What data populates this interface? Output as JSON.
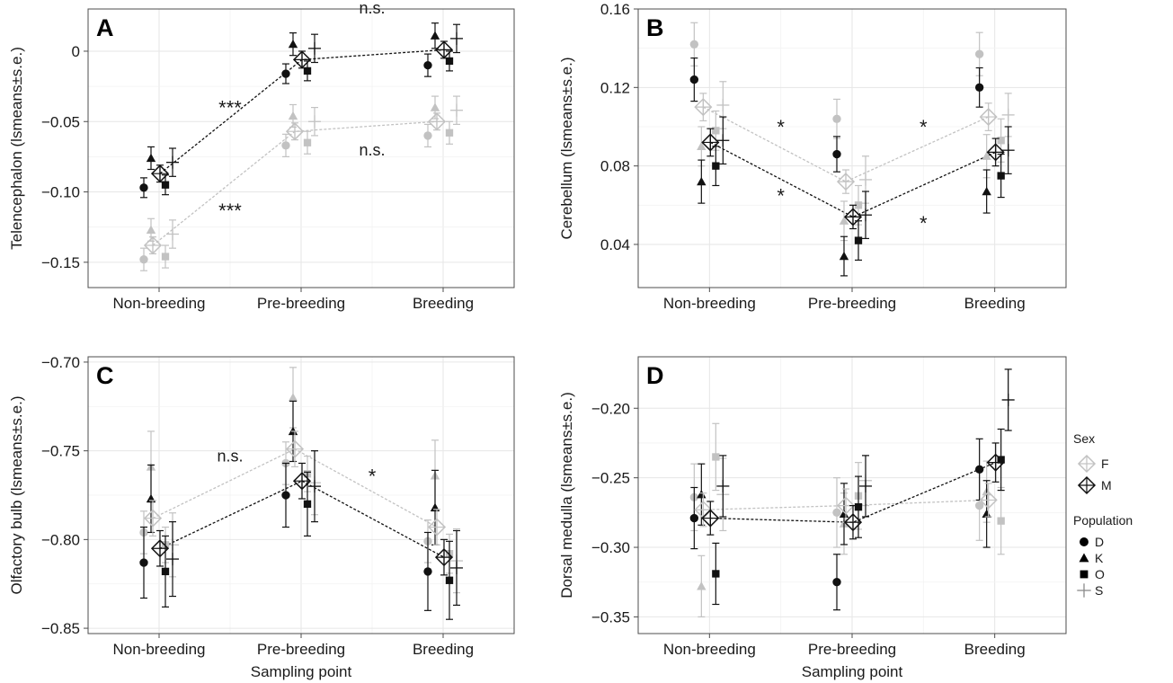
{
  "figure": {
    "colors": {
      "female": "#c2c2c2",
      "male": "#111111",
      "grid": "#e6e6e6",
      "frame": "#4d4d4d",
      "text": "#1a1a1a"
    },
    "x_title": "Sampling point",
    "legend": {
      "sex_title": "Sex",
      "sex_entries": [
        {
          "label": "F",
          "color": "#c2c2c2",
          "shape": "diamond"
        },
        {
          "label": "M",
          "color": "#111111",
          "shape": "diamond"
        }
      ],
      "pop_title": "Population",
      "pop_entries": [
        {
          "label": "D",
          "shape": "circle"
        },
        {
          "label": "K",
          "shape": "triangle"
        },
        {
          "label": "O",
          "shape": "square"
        },
        {
          "label": "S",
          "shape": "cross"
        }
      ]
    }
  },
  "chart_data": [
    {
      "type": "scatter",
      "panel": "A",
      "xlabel": "",
      "ylabel": "Telencephalon (lsmeans±s.e.)",
      "categories": [
        "Non-breeding",
        "Pre-breeding",
        "Breeding"
      ],
      "ylim": [
        -0.168,
        0.03
      ],
      "yticks": [
        0,
        -0.05,
        -0.1,
        -0.15
      ],
      "ytick_labels": [
        "0",
        "−0.05",
        "−0.10",
        "−0.15"
      ],
      "show_xlabel": false,
      "series": [
        {
          "sex": "F",
          "population": "D",
          "values": [
            -0.148,
            -0.067,
            -0.06
          ],
          "se": [
            0.008,
            0.008,
            0.008
          ]
        },
        {
          "sex": "F",
          "population": "K",
          "values": [
            -0.127,
            -0.046,
            -0.04
          ],
          "se": [
            0.008,
            0.008,
            0.008
          ]
        },
        {
          "sex": "F",
          "population": "O",
          "values": [
            -0.146,
            -0.065,
            -0.058
          ],
          "se": [
            0.008,
            0.008,
            0.008
          ]
        },
        {
          "sex": "F",
          "population": "S",
          "values": [
            -0.13,
            -0.05,
            -0.042
          ],
          "se": [
            0.01,
            0.01,
            0.01
          ]
        },
        {
          "sex": "M",
          "population": "D",
          "values": [
            -0.097,
            -0.016,
            -0.01
          ],
          "se": [
            0.007,
            0.007,
            0.008
          ]
        },
        {
          "sex": "M",
          "population": "K",
          "values": [
            -0.076,
            0.005,
            0.011
          ],
          "se": [
            0.008,
            0.008,
            0.009
          ]
        },
        {
          "sex": "M",
          "population": "O",
          "values": [
            -0.095,
            -0.014,
            -0.007
          ],
          "se": [
            0.007,
            0.007,
            0.007
          ]
        },
        {
          "sex": "M",
          "population": "S",
          "values": [
            -0.079,
            0.002,
            0.009
          ],
          "se": [
            0.01,
            0.01,
            0.01
          ]
        }
      ],
      "means": [
        {
          "sex": "F",
          "values": [
            -0.138,
            -0.057,
            -0.05
          ],
          "se": [
            0.006,
            0.006,
            0.006
          ]
        },
        {
          "sex": "M",
          "values": [
            -0.087,
            -0.006,
            0.001
          ],
          "se": [
            0.006,
            0.006,
            0.006
          ]
        }
      ],
      "annotations": [
        {
          "text": "***",
          "x": 0.5,
          "y": -0.04
        },
        {
          "text": "***",
          "x": 0.5,
          "y": -0.113
        },
        {
          "text": "n.s.",
          "x": 1.5,
          "y": 0.032
        },
        {
          "text": "n.s.",
          "x": 1.5,
          "y": -0.069
        }
      ]
    },
    {
      "type": "scatter",
      "panel": "B",
      "xlabel": "",
      "ylabel": "Cerebellum (lsmeans±s.e.)",
      "categories": [
        "Non-breeding",
        "Pre-breeding",
        "Breeding"
      ],
      "ylim": [
        0.018,
        0.16
      ],
      "yticks": [
        0.04,
        0.08,
        0.12,
        0.16
      ],
      "ytick_labels": [
        "0.04",
        "0.08",
        "0.12",
        "0.16"
      ],
      "show_xlabel": false,
      "series": [
        {
          "sex": "F",
          "population": "D",
          "values": [
            0.142,
            0.104,
            0.137
          ],
          "se": [
            0.011,
            0.01,
            0.011
          ]
        },
        {
          "sex": "F",
          "population": "K",
          "values": [
            0.09,
            0.052,
            0.085
          ],
          "se": [
            0.01,
            0.01,
            0.011
          ]
        },
        {
          "sex": "F",
          "population": "O",
          "values": [
            0.098,
            0.06,
            0.093
          ],
          "se": [
            0.01,
            0.01,
            0.011
          ]
        },
        {
          "sex": "F",
          "population": "S",
          "values": [
            0.111,
            0.073,
            0.106
          ],
          "se": [
            0.012,
            0.012,
            0.011
          ]
        },
        {
          "sex": "M",
          "population": "D",
          "values": [
            0.124,
            0.086,
            0.12
          ],
          "se": [
            0.011,
            0.009,
            0.01
          ]
        },
        {
          "sex": "M",
          "population": "K",
          "values": [
            0.072,
            0.034,
            0.067
          ],
          "se": [
            0.011,
            0.01,
            0.011
          ]
        },
        {
          "sex": "M",
          "population": "O",
          "values": [
            0.08,
            0.042,
            0.075
          ],
          "se": [
            0.01,
            0.01,
            0.011
          ]
        },
        {
          "sex": "M",
          "population": "S",
          "values": [
            0.093,
            0.055,
            0.088
          ],
          "se": [
            0.012,
            0.012,
            0.012
          ]
        }
      ],
      "means": [
        {
          "sex": "F",
          "values": [
            0.11,
            0.072,
            0.105
          ],
          "se": [
            0.007,
            0.006,
            0.007
          ]
        },
        {
          "sex": "M",
          "values": [
            0.092,
            0.054,
            0.087
          ],
          "se": [
            0.007,
            0.006,
            0.007
          ]
        }
      ],
      "annotations": [
        {
          "text": "*",
          "x": 0.5,
          "y": 0.1
        },
        {
          "text": "*",
          "x": 0.5,
          "y": 0.065
        },
        {
          "text": "*",
          "x": 1.5,
          "y": 0.1
        },
        {
          "text": "*",
          "x": 1.5,
          "y": 0.051
        }
      ]
    },
    {
      "type": "scatter",
      "panel": "C",
      "xlabel": "Sampling point",
      "ylabel": "Olfactory bulb (lsmeans±s.e.)",
      "categories": [
        "Non-breeding",
        "Pre-breeding",
        "Breeding"
      ],
      "ylim": [
        -0.853,
        -0.697
      ],
      "yticks": [
        -0.7,
        -0.75,
        -0.8,
        -0.85
      ],
      "ytick_labels": [
        "−0.70",
        "−0.75",
        "−0.80",
        "−0.85"
      ],
      "show_xlabel": true,
      "series": [
        {
          "sex": "F",
          "population": "D",
          "values": [
            -0.796,
            -0.757,
            -0.801
          ],
          "se": [
            0.012,
            0.012,
            0.012
          ]
        },
        {
          "sex": "F",
          "population": "K",
          "values": [
            -0.759,
            -0.72,
            -0.764
          ],
          "se": [
            0.02,
            0.017,
            0.02
          ]
        },
        {
          "sex": "F",
          "population": "O",
          "values": [
            -0.803,
            -0.763,
            -0.808
          ],
          "se": [
            0.01,
            0.01,
            0.011
          ]
        },
        {
          "sex": "F",
          "population": "S",
          "values": [
            -0.803,
            -0.768,
            -0.812
          ],
          "se": [
            0.018,
            0.018,
            0.018
          ]
        },
        {
          "sex": "M",
          "population": "D",
          "values": [
            -0.813,
            -0.775,
            -0.818
          ],
          "se": [
            0.02,
            0.018,
            0.022
          ]
        },
        {
          "sex": "M",
          "population": "K",
          "values": [
            -0.777,
            -0.739,
            -0.782
          ],
          "se": [
            0.019,
            0.017,
            0.021
          ]
        },
        {
          "sex": "M",
          "population": "O",
          "values": [
            -0.818,
            -0.78,
            -0.823
          ],
          "se": [
            0.02,
            0.018,
            0.022
          ]
        },
        {
          "sex": "M",
          "population": "S",
          "values": [
            -0.811,
            -0.77,
            -0.816
          ],
          "se": [
            0.021,
            0.02,
            0.021
          ]
        }
      ],
      "means": [
        {
          "sex": "F",
          "values": [
            -0.788,
            -0.749,
            -0.793
          ],
          "se": [
            0.01,
            0.01,
            0.01
          ]
        },
        {
          "sex": "M",
          "values": [
            -0.805,
            -0.767,
            -0.81
          ],
          "se": [
            0.01,
            0.01,
            0.01
          ]
        }
      ],
      "annotations": [
        {
          "text": "n.s.",
          "x": 0.5,
          "y": -0.752
        },
        {
          "text": "*",
          "x": 1.5,
          "y": -0.764
        }
      ]
    },
    {
      "type": "scatter",
      "panel": "D",
      "xlabel": "Sampling point",
      "ylabel": "Dorsal medulla (lsmeans±s.e.)",
      "categories": [
        "Non-breeding",
        "Pre-breeding",
        "Breeding"
      ],
      "ylim": [
        -0.362,
        -0.163
      ],
      "yticks": [
        -0.2,
        -0.25,
        -0.3,
        -0.35
      ],
      "ytick_labels": [
        "−0.20",
        "−0.25",
        "−0.30",
        "−0.35"
      ],
      "show_xlabel": true,
      "series": [
        {
          "sex": "F",
          "population": "D",
          "values": [
            -0.264,
            -0.275,
            -0.27
          ],
          "se": [
            0.024,
            0.025,
            0.025
          ]
        },
        {
          "sex": "F",
          "population": "K",
          "values": [
            -0.328,
            -0.283,
            -0.26
          ],
          "se": [
            0.022,
            0.022,
            0.022
          ]
        },
        {
          "sex": "F",
          "population": "O",
          "values": [
            -0.235,
            -0.263,
            -0.281
          ],
          "se": [
            0.024,
            0.024,
            0.024
          ]
        },
        {
          "sex": "F",
          "population": "S",
          "values": [
            -0.262,
            -0.252,
            -0.194
          ],
          "se": [
            0.026,
            0.018,
            0.022
          ]
        },
        {
          "sex": "M",
          "population": "D",
          "values": [
            -0.279,
            -0.325,
            -0.244
          ],
          "se": [
            0.022,
            0.02,
            0.022
          ]
        },
        {
          "sex": "M",
          "population": "K",
          "values": [
            -0.262,
            -0.276,
            -0.276
          ],
          "se": [
            0.022,
            0.022,
            0.024
          ]
        },
        {
          "sex": "M",
          "population": "O",
          "values": [
            -0.319,
            -0.271,
            -0.237
          ],
          "se": [
            0.022,
            0.022,
            0.022
          ]
        },
        {
          "sex": "M",
          "population": "S",
          "values": [
            -0.256,
            -0.256,
            -0.194
          ],
          "se": [
            0.022,
            0.022,
            0.022
          ]
        }
      ],
      "means": [
        {
          "sex": "F",
          "values": [
            -0.273,
            -0.27,
            -0.266
          ],
          "se": [
            0.012,
            0.012,
            0.012
          ]
        },
        {
          "sex": "M",
          "values": [
            -0.279,
            -0.282,
            -0.239
          ],
          "se": [
            0.012,
            0.012,
            0.014
          ]
        }
      ],
      "annotations": []
    }
  ]
}
